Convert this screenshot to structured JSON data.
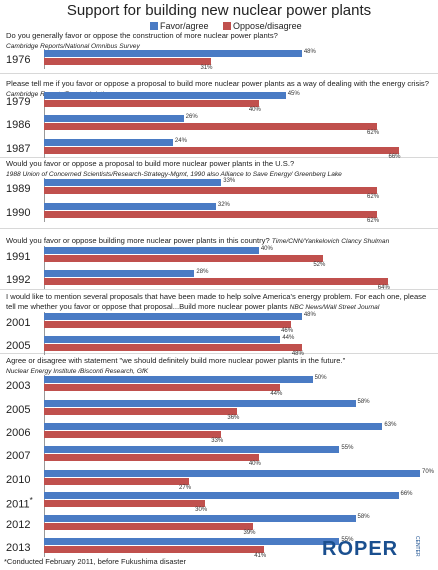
{
  "chart_data": {
    "type": "bar",
    "orientation": "horizontal",
    "title": "Support for building new nuclear power plants",
    "legend": [
      {
        "name": "Favor/agree",
        "color": "#4a7bc4"
      },
      {
        "name": "Oppose/disagree",
        "color": "#c0504d"
      }
    ],
    "xlim": [
      0,
      100
    ],
    "groups": [
      {
        "question": "Do you generally favor or oppose the construction of more nuclear power plants?",
        "source": "Cambridge Reports/National Omnibus Survey",
        "rows": [
          {
            "year": "1976",
            "favor": 48,
            "oppose": 31
          }
        ]
      },
      {
        "question": "Please tell me if you favor or oppose a proposal to build more nuclear power plants as a way of dealing  with the energy crisis?",
        "source": "Cambridge Reports/Research Intl",
        "rows": [
          {
            "year": "1979",
            "favor": 45,
            "oppose": 40
          },
          {
            "year": "1986",
            "favor": 26,
            "oppose": 62
          },
          {
            "year": "1987",
            "favor": 24,
            "oppose": 66
          }
        ]
      },
      {
        "question": "Would you favor or oppose a proposal to build more nuclear power plants in the U.S.?",
        "source": "1988 Union of Concerned Scientists/Research-Strategy-Mgmt, 1990  also Alliance to Save Energy/ Greenberg Lake",
        "rows": [
          {
            "year": "1989",
            "favor": 33,
            "oppose": 62
          },
          {
            "year": "1990",
            "favor": 32,
            "oppose": 62
          }
        ]
      },
      {
        "question": "Would you favor or oppose building more nuclear power plants in this country?",
        "source": "Time/CNN/Yankelovich Clancy Shulman",
        "rows": [
          {
            "year": "1991",
            "favor": 40,
            "oppose": 52
          },
          {
            "year": "1992",
            "favor": 28,
            "oppose": 64
          }
        ]
      },
      {
        "question": "I would like to mention several proposals that have been made to help solve America's energy problem. For each one, please tell me whether you favor or oppose  that proposal...Build more nuclear power plants",
        "source": "NBC News/Wall Street Journal",
        "rows": [
          {
            "year": "2001",
            "favor": 48,
            "oppose": 46
          },
          {
            "year": "2005",
            "favor": 44,
            "oppose": 48
          }
        ]
      },
      {
        "question": "Agree or disagree with statement \"we should  definitely build more nuclear power plants in the future.\"",
        "source": "Nuclear Energy Institute /Bisconti  Research, GfK",
        "rows": [
          {
            "year": "2003",
            "favor": 50,
            "oppose": 44
          },
          {
            "year": "2005",
            "favor": 58,
            "oppose": 36
          },
          {
            "year": "2006",
            "favor": 63,
            "oppose": 33
          },
          {
            "year": "2007",
            "favor": 55,
            "oppose": 40
          },
          {
            "year": "2010",
            "favor": 70,
            "oppose": 27
          },
          {
            "year": "2011",
            "marker": "*",
            "favor": 66,
            "oppose": 30
          },
          {
            "year": "2012",
            "favor": 58,
            "oppose": 39
          },
          {
            "year": "2013",
            "favor": 55,
            "oppose": 41
          }
        ]
      }
    ],
    "footnote": "*Conducted February 2011, before Fukushima disaster"
  },
  "logo": {
    "text": "ROPER",
    "sub": "CENTER"
  }
}
